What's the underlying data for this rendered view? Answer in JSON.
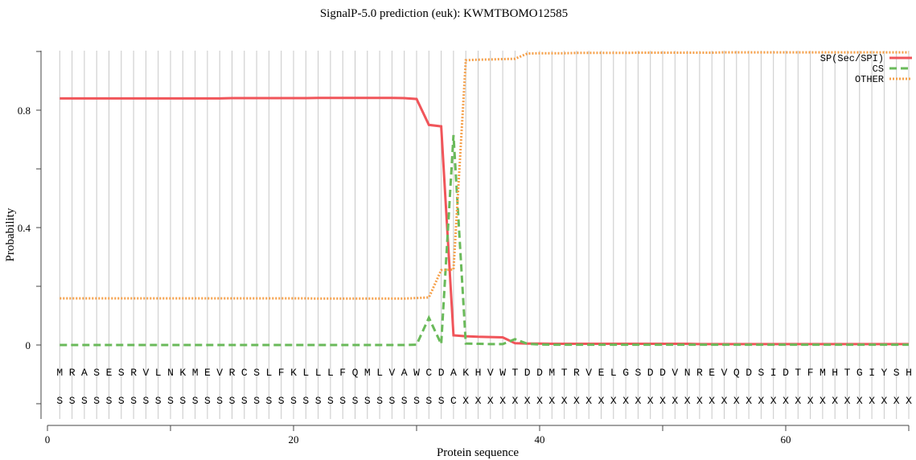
{
  "chart_data": {
    "type": "line",
    "title": "SignalP-5.0 prediction (euk):  KWMTBOMO12585",
    "xlabel": "Protein sequence",
    "ylabel": "Probability",
    "xlim": [
      0,
      70
    ],
    "ylim": [
      -0.25,
      1.0
    ],
    "xticks": [
      0,
      20,
      40,
      60
    ],
    "yticks": [
      0,
      0.4,
      0.8
    ],
    "grid": "vertical lines at each residue",
    "legend_position": "top-right",
    "sequence": [
      "M",
      "R",
      "A",
      "S",
      "E",
      "S",
      "R",
      "V",
      "L",
      "N",
      "K",
      "M",
      "E",
      "V",
      "R",
      "C",
      "S",
      "L",
      "F",
      "K",
      "L",
      "L",
      "L",
      "F",
      "Q",
      "M",
      "L",
      "V",
      "A",
      "W",
      "C",
      "D",
      "A",
      "K",
      "H",
      "V",
      "W",
      "T",
      "D",
      "D",
      "M",
      "T",
      "R",
      "V",
      "E",
      "L",
      "G",
      "S",
      "D",
      "D",
      "V",
      "N",
      "R",
      "E",
      "V",
      "Q",
      "D",
      "S",
      "I",
      "D",
      "T",
      "F",
      "M",
      "H",
      "T",
      "G",
      "I",
      "Y",
      "S",
      "H"
    ],
    "annotation": [
      "S",
      "S",
      "S",
      "S",
      "S",
      "S",
      "S",
      "S",
      "S",
      "S",
      "S",
      "S",
      "S",
      "S",
      "S",
      "S",
      "S",
      "S",
      "S",
      "S",
      "S",
      "S",
      "S",
      "S",
      "S",
      "S",
      "S",
      "S",
      "S",
      "S",
      "S",
      "S",
      "C",
      "X",
      "X",
      "X",
      "X",
      "X",
      "X",
      "X",
      "X",
      "X",
      "X",
      "X",
      "X",
      "X",
      "X",
      "X",
      "X",
      "X",
      "X",
      "X",
      "X",
      "X",
      "X",
      "X",
      "X",
      "X",
      "X",
      "X",
      "X",
      "X",
      "X",
      "X",
      "X",
      "X",
      "X",
      "X",
      "X",
      "X"
    ],
    "x": [
      1,
      2,
      3,
      4,
      5,
      6,
      7,
      8,
      9,
      10,
      11,
      12,
      13,
      14,
      15,
      16,
      17,
      18,
      19,
      20,
      21,
      22,
      23,
      24,
      25,
      26,
      27,
      28,
      29,
      30,
      31,
      32,
      33,
      34,
      35,
      36,
      37,
      38,
      39,
      40,
      41,
      42,
      43,
      44,
      45,
      46,
      47,
      48,
      49,
      50,
      51,
      52,
      53,
      54,
      55,
      56,
      57,
      58,
      59,
      60,
      61,
      62,
      63,
      64,
      65,
      66,
      67,
      68,
      69,
      70
    ],
    "series": [
      {
        "name": "SP(Sec/SPI)",
        "color": "#f0555a",
        "style": "solid",
        "values": [
          0.84,
          0.84,
          0.84,
          0.84,
          0.84,
          0.84,
          0.84,
          0.84,
          0.84,
          0.84,
          0.84,
          0.84,
          0.84,
          0.84,
          0.841,
          0.841,
          0.841,
          0.841,
          0.841,
          0.841,
          0.841,
          0.842,
          0.842,
          0.842,
          0.842,
          0.842,
          0.842,
          0.842,
          0.841,
          0.838,
          0.75,
          0.745,
          0.033,
          0.03,
          0.028,
          0.027,
          0.026,
          0.006,
          0.005,
          0.005,
          0.004,
          0.004,
          0.004,
          0.004,
          0.004,
          0.004,
          0.004,
          0.004,
          0.004,
          0.004,
          0.004,
          0.004,
          0.003,
          0.003,
          0.003,
          0.003,
          0.003,
          0.003,
          0.003,
          0.003,
          0.003,
          0.003,
          0.003,
          0.003,
          0.003,
          0.003,
          0.003,
          0.003,
          0.003,
          0.003
        ]
      },
      {
        "name": "CS",
        "color": "#6aba5a",
        "style": "dashed",
        "values": [
          0,
          0,
          0,
          0,
          0,
          0,
          0,
          0,
          0,
          0,
          0,
          0,
          0,
          0,
          0,
          0,
          0,
          0,
          0,
          0,
          0,
          0,
          0,
          0,
          0,
          0,
          0,
          0,
          0,
          0.001,
          0.093,
          0.003,
          0.715,
          0.005,
          0.004,
          0.003,
          0.003,
          0.02,
          0.004,
          0.002,
          0.001,
          0.001,
          0.001,
          0.001,
          0.001,
          0.001,
          0.001,
          0.001,
          0.001,
          0.001,
          0.001,
          0.001,
          0.001,
          0.001,
          0.001,
          0.001,
          0.001,
          0.001,
          0.001,
          0.001,
          0.001,
          0.001,
          0.001,
          0.001,
          0.001,
          0.001,
          0.001,
          0.001,
          0.001,
          0.001
        ]
      },
      {
        "name": "OTHER",
        "color": "#f5a04a",
        "style": "dotted",
        "values": [
          0.159,
          0.159,
          0.159,
          0.159,
          0.159,
          0.159,
          0.159,
          0.159,
          0.159,
          0.159,
          0.159,
          0.159,
          0.159,
          0.159,
          0.159,
          0.159,
          0.159,
          0.159,
          0.159,
          0.159,
          0.159,
          0.158,
          0.158,
          0.158,
          0.158,
          0.158,
          0.158,
          0.158,
          0.158,
          0.16,
          0.162,
          0.255,
          0.257,
          0.97,
          0.972,
          0.973,
          0.974,
          0.975,
          0.993,
          0.994,
          0.994,
          0.994,
          0.995,
          0.995,
          0.995,
          0.995,
          0.995,
          0.996,
          0.996,
          0.996,
          0.996,
          0.996,
          0.996,
          0.996,
          0.997,
          0.997,
          0.997,
          0.997,
          0.997,
          0.997,
          0.997,
          0.997,
          0.997,
          0.997,
          0.997,
          0.997,
          0.997,
          0.997,
          0.997,
          0.997
        ]
      }
    ]
  }
}
